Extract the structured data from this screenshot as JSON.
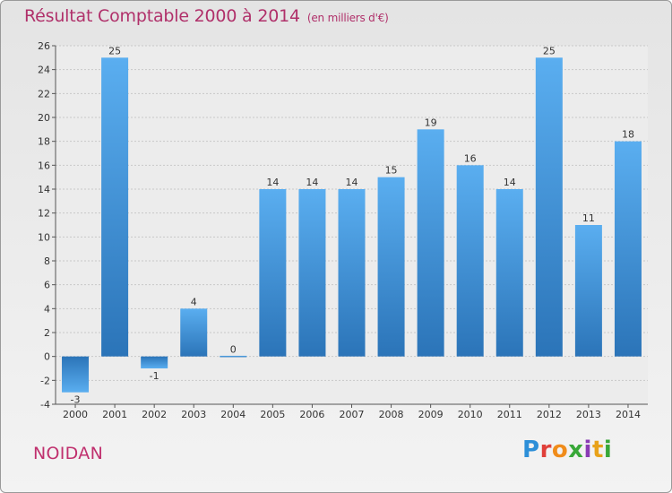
{
  "title": "Résultat Comptable 2000 à 2014",
  "subtitle": "(en milliers d'€)",
  "commune": "NOIDAN",
  "brand": {
    "text": "Proxiti",
    "colors": [
      "#2d8fd8",
      "#e0403a",
      "#f08c1a",
      "#38a838",
      "#8a3cb4",
      "#e8a21a",
      "#38a838"
    ]
  },
  "chart_data": {
    "type": "bar",
    "title": "Résultat Comptable 2000 à 2014",
    "xlabel": "",
    "ylabel": "",
    "categories": [
      "2000",
      "2001",
      "2002",
      "2003",
      "2004",
      "2005",
      "2006",
      "2007",
      "2008",
      "2009",
      "2010",
      "2011",
      "2012",
      "2013",
      "2014"
    ],
    "values": [
      -3,
      25,
      -1,
      4,
      0,
      14,
      14,
      14,
      15,
      19,
      16,
      14,
      25,
      11,
      18
    ],
    "data_labels": [
      "-3",
      "25",
      "-1",
      "4",
      "0",
      "14",
      "14",
      "14",
      "15",
      "19",
      "16",
      "14",
      "25",
      "11",
      "18"
    ],
    "ylim": [
      -4,
      26
    ],
    "yticks": [
      -4,
      -2,
      0,
      2,
      4,
      6,
      8,
      10,
      12,
      14,
      16,
      18,
      20,
      22,
      24,
      26
    ],
    "grid": true,
    "bar_color": "#4a9ee0",
    "bar_color_dark": "#2b74b8"
  }
}
